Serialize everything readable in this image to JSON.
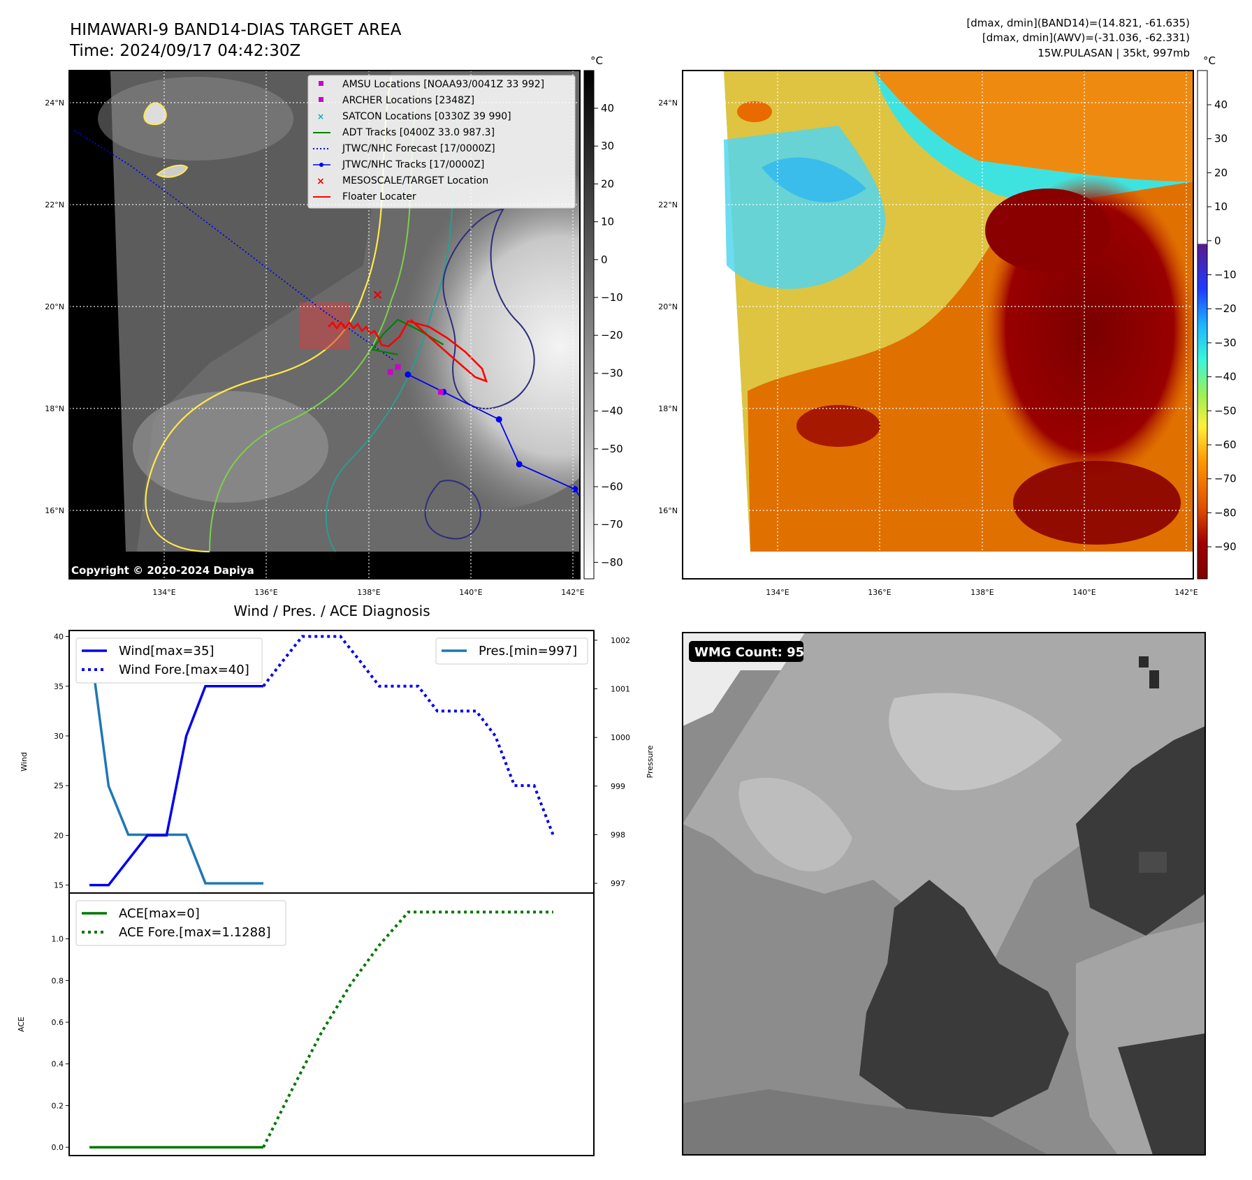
{
  "header": {
    "title": "HIMAWARI-9 BAND14-DIAS TARGET AREA",
    "time": "Time: 2024/09/17 04:42:30Z",
    "dmax_band14": "[dmax, dmin](BAND14)=(14.821, -61.635)",
    "dmax_awv": "[dmax, dmin](AWV)=(-31.036, -62.331)",
    "storm": "15W.PULASAN | 35kt, 997mb"
  },
  "copyright": "Copyright © 2020-2024 Dapiya",
  "wmg_count": "WMG Count: 95",
  "colors": {
    "amsu": "#cc00cc",
    "archer": "#cc00cc",
    "satcon": "#00b3b3",
    "adt": "#008000",
    "jtwc": "#0000ee",
    "target": "#ee0000",
    "floater": "#ff0000",
    "pres": "#1f77b4",
    "ace": "#007700"
  },
  "chart_data": [
    {
      "type": "map",
      "panel": "band14",
      "cbar_label": "°C",
      "cbar_ticks": [
        "40",
        "30",
        "20",
        "10",
        "0",
        "−10",
        "−20",
        "−30",
        "−40",
        "−50",
        "−60",
        "−70",
        "−80"
      ],
      "lat_ticks": [
        "24°N",
        "22°N",
        "20°N",
        "18°N",
        "16°N"
      ],
      "lon_ticks": [
        "134°E",
        "136°E",
        "138°E",
        "140°E",
        "142°E"
      ],
      "lon_range": [
        132.0,
        142.1
      ],
      "lat_range": [
        14.4,
        24.6
      ],
      "legend": [
        "AMSU Locations [NOAA93/0041Z 33 992]",
        "ARCHER Locations [2348Z]",
        "SATCON Locations [0330Z 39 990]",
        "ADT Tracks [0400Z 33.0 987.3]",
        "JTWC/NHC Forecast [17/0000Z]",
        "JTWC/NHC Tracks [17/0000Z]",
        "MESOSCALE/TARGET Location",
        "Floater Locater"
      ],
      "jtwc_track": [
        [
          142.2,
          15.9
        ],
        [
          142.0,
          16.2
        ],
        [
          140.9,
          16.7
        ],
        [
          140.5,
          17.6
        ],
        [
          139.4,
          18.15
        ],
        [
          138.7,
          18.5
        ]
      ],
      "jtwc_forecast": [
        [
          138.4,
          18.8
        ],
        [
          137.0,
          19.8
        ],
        [
          135.7,
          20.8
        ],
        [
          134.4,
          21.8
        ],
        [
          133.2,
          22.7
        ],
        [
          132.1,
          23.4
        ]
      ],
      "adt_track": [
        [
          138.5,
          18.9
        ],
        [
          138.0,
          19.0
        ],
        [
          138.2,
          19.3
        ],
        [
          138.5,
          19.6
        ],
        [
          138.9,
          19.4
        ],
        [
          139.4,
          19.1
        ]
      ],
      "amsu_points": [
        [
          138.35,
          18.55
        ],
        [
          138.5,
          18.65
        ],
        [
          139.35,
          18.15
        ]
      ],
      "target_point": [
        138.1,
        20.1
      ]
    },
    {
      "type": "map",
      "panel": "awv",
      "cbar_label": "°C",
      "cbar_ticks": [
        "40",
        "30",
        "20",
        "10",
        "0",
        "−10",
        "−20",
        "−30",
        "−40",
        "−50",
        "−60",
        "−70",
        "−80",
        "−90"
      ],
      "lat_ticks": [
        "24°N",
        "22°N",
        "20°N",
        "18°N",
        "16°N"
      ],
      "lon_ticks": [
        "134°E",
        "136°E",
        "138°E",
        "140°E",
        "142°E"
      ]
    },
    {
      "type": "line",
      "title": "Wind / Pres. / ACE Diagnosis",
      "ylabel": "Wind",
      "ylabel_right": "Pressure",
      "ylim": [
        14.2,
        40.6
      ],
      "ylim_right": [
        996.8,
        1002.2
      ],
      "xlim": [
        -0.35,
        8.7
      ],
      "yticks": [
        "15",
        "20",
        "25",
        "30",
        "35",
        "40"
      ],
      "yticks_right": [
        "997",
        "998",
        "999",
        "1000",
        "1001",
        "1002"
      ],
      "series": [
        {
          "name": "Wind[max=35]",
          "x": [
            0,
            0.33,
            1,
            1.33,
            1.67,
            2,
            3
          ],
          "y": [
            15,
            15,
            20,
            20,
            30,
            35,
            35
          ]
        },
        {
          "name": "Wind Fore.[max=40]",
          "x": [
            3,
            3.33,
            3.67,
            4,
            4.33,
            4.67,
            5,
            5.33,
            5.67,
            6,
            6.33,
            6.67,
            7,
            7.33,
            7.67,
            8
          ],
          "y": [
            35,
            37.5,
            40,
            40,
            40,
            37.5,
            35,
            35,
            35,
            32.5,
            32.5,
            32.5,
            30,
            25,
            25,
            20
          ]
        },
        {
          "name": "Pres.[min=997]",
          "x": [
            0,
            0.33,
            0.67,
            1,
            1.67,
            2,
            3
          ],
          "y": [
            1002,
            999,
            998,
            998,
            998,
            997,
            997
          ]
        }
      ]
    },
    {
      "type": "line",
      "ylabel": "ACE",
      "ylim": [
        -0.04,
        1.22
      ],
      "xlim": [
        -0.35,
        8.7
      ],
      "yticks": [
        "0.0",
        "0.2",
        "0.4",
        "0.6",
        "0.8",
        "1.0"
      ],
      "series": [
        {
          "name": "ACE[max=0]",
          "x": [
            0,
            3
          ],
          "y": [
            0,
            0
          ]
        },
        {
          "name": "ACE Fore.[max=1.1288]",
          "x": [
            3,
            3.5,
            4,
            4.5,
            5,
            5.5,
            6,
            7,
            8
          ],
          "y": [
            0,
            0.28,
            0.55,
            0.78,
            0.97,
            1.1288,
            1.1288,
            1.1288,
            1.1288
          ]
        }
      ]
    }
  ]
}
